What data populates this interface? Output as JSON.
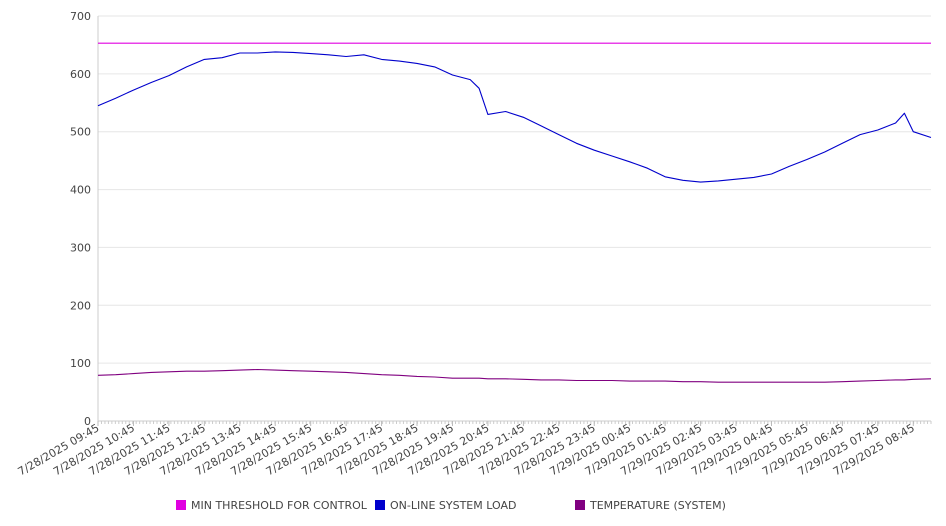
{
  "chart_data": {
    "type": "line",
    "title": "",
    "xlabel": "",
    "ylabel": "",
    "ylim": [
      0,
      700
    ],
    "yticks": [
      0,
      100,
      200,
      300,
      400,
      500,
      600,
      700
    ],
    "grid": true,
    "legend_position": "bottom",
    "x_tick_labels": [
      "7/28/2025 09:45",
      "7/28/2025 10:45",
      "7/28/2025 11:45",
      "7/28/2025 12:45",
      "7/28/2025 13:45",
      "7/28/2025 14:45",
      "7/28/2025 15:45",
      "7/28/2025 16:45",
      "7/28/2025 17:45",
      "7/28/2025 18:45",
      "7/28/2025 19:45",
      "7/28/2025 20:45",
      "7/28/2025 21:45",
      "7/28/2025 22:45",
      "7/28/2025 23:45",
      "7/29/2025 00:45",
      "7/29/2025 01:45",
      "7/29/2025 02:45",
      "7/29/2025 03:45",
      "7/29/2025 04:45",
      "7/29/2025 05:45",
      "7/29/2025 06:45",
      "7/29/2025 07:45",
      "7/29/2025 08:45"
    ],
    "x": [
      "7/28/2025 09:45",
      "7/28/2025 10:15",
      "7/28/2025 10:45",
      "7/28/2025 11:15",
      "7/28/2025 11:45",
      "7/28/2025 12:15",
      "7/28/2025 12:45",
      "7/28/2025 13:15",
      "7/28/2025 13:45",
      "7/28/2025 14:15",
      "7/28/2025 14:45",
      "7/28/2025 15:15",
      "7/28/2025 15:45",
      "7/28/2025 16:15",
      "7/28/2025 16:45",
      "7/28/2025 17:15",
      "7/28/2025 17:45",
      "7/28/2025 18:15",
      "7/28/2025 18:45",
      "7/28/2025 19:15",
      "7/28/2025 19:45",
      "7/28/2025 20:15",
      "7/28/2025 20:30",
      "7/28/2025 20:45",
      "7/28/2025 21:15",
      "7/28/2025 21:45",
      "7/28/2025 22:15",
      "7/28/2025 22:45",
      "7/28/2025 23:15",
      "7/28/2025 23:45",
      "7/29/2025 00:15",
      "7/29/2025 00:45",
      "7/29/2025 01:15",
      "7/29/2025 01:45",
      "7/29/2025 02:15",
      "7/29/2025 02:45",
      "7/29/2025 03:15",
      "7/29/2025 03:45",
      "7/29/2025 04:15",
      "7/29/2025 04:45",
      "7/29/2025 05:15",
      "7/29/2025 05:45",
      "7/29/2025 06:15",
      "7/29/2025 06:45",
      "7/29/2025 07:15",
      "7/29/2025 07:45",
      "7/29/2025 08:15",
      "7/29/2025 08:30",
      "7/29/2025 08:45",
      "7/29/2025 09:15"
    ],
    "series": [
      {
        "name": "MIN THRESHOLD FOR CONTROL",
        "color": "#e000e0",
        "values": [
          653,
          653,
          653,
          653,
          653,
          653,
          653,
          653,
          653,
          653,
          653,
          653,
          653,
          653,
          653,
          653,
          653,
          653,
          653,
          653,
          653,
          653,
          653,
          653,
          653,
          653,
          653,
          653,
          653,
          653,
          653,
          653,
          653,
          653,
          653,
          653,
          653,
          653,
          653,
          653,
          653,
          653,
          653,
          653,
          653,
          653,
          653,
          653,
          653,
          653
        ]
      },
      {
        "name": "ON-LINE SYSTEM LOAD",
        "color": "#0000cc",
        "values": [
          545,
          558,
          572,
          585,
          597,
          612,
          625,
          628,
          636,
          636,
          638,
          637,
          635,
          633,
          630,
          633,
          625,
          622,
          618,
          612,
          598,
          590,
          575,
          530,
          535,
          525,
          510,
          495,
          480,
          468,
          458,
          448,
          437,
          422,
          416,
          413,
          415,
          418,
          421,
          427,
          440,
          452,
          465,
          480,
          495,
          503,
          515,
          532,
          500,
          490
        ]
      },
      {
        "name": "TEMPERATURE (SYSTEM)",
        "color": "#800080",
        "values": [
          79,
          80,
          82,
          84,
          85,
          86,
          86,
          87,
          88,
          89,
          88,
          87,
          86,
          85,
          84,
          82,
          80,
          79,
          77,
          76,
          74,
          74,
          74,
          73,
          73,
          72,
          71,
          71,
          70,
          70,
          70,
          69,
          69,
          69,
          68,
          68,
          67,
          67,
          67,
          67,
          67,
          67,
          67,
          68,
          69,
          70,
          71,
          71,
          72,
          73
        ]
      }
    ]
  }
}
